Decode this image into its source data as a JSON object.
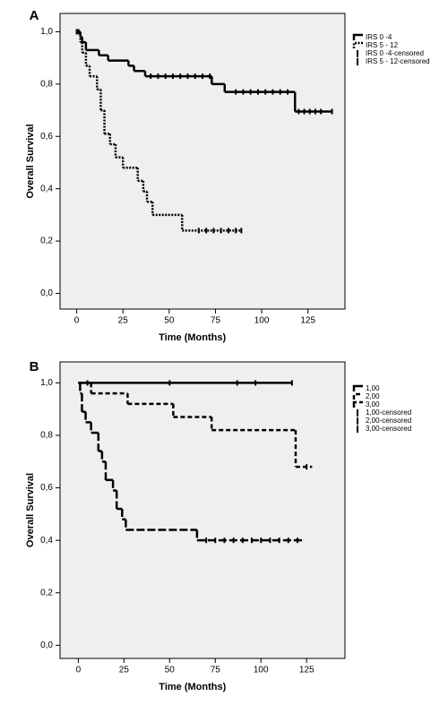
{
  "chart_data": [
    {
      "type": "line",
      "label": "A",
      "x_label": "Time (Months)",
      "y_label": "Overall Survival",
      "xlim": [
        -9,
        145
      ],
      "ylim": [
        -0.06,
        1.07
      ],
      "xticks": [
        0,
        25,
        50,
        75,
        100,
        125
      ],
      "yticks": [
        {
          "value": 0,
          "label": "0,0"
        },
        {
          "value": 0.2,
          "label": "0,2"
        },
        {
          "value": 0.4,
          "label": "0,4"
        },
        {
          "value": 0.6,
          "label": "0,6"
        },
        {
          "value": 0.8,
          "label": "0,8"
        },
        {
          "value": 1.0,
          "label": "1,0"
        }
      ],
      "series": [
        {
          "name": "IRS 0 -4",
          "color": "#000000",
          "style": "solid",
          "x": [
            0,
            2,
            3,
            5,
            12,
            17,
            28,
            31,
            37,
            73,
            80,
            118,
            138
          ],
          "values": [
            1.0,
            0.98,
            0.96,
            0.93,
            0.91,
            0.89,
            0.87,
            0.85,
            0.83,
            0.8,
            0.77,
            0.695,
            0.695
          ]
        },
        {
          "name": "IRS 5 - 12",
          "color": "#000000",
          "style": "dotted",
          "x": [
            0,
            2,
            3,
            5,
            7,
            11,
            13,
            15,
            18,
            21,
            25,
            33,
            36,
            38,
            41,
            57,
            89
          ],
          "values": [
            1.0,
            0.96,
            0.92,
            0.87,
            0.83,
            0.78,
            0.7,
            0.61,
            0.57,
            0.52,
            0.48,
            0.43,
            0.39,
            0.35,
            0.3,
            0.24,
            0.24
          ]
        },
        {
          "name": "IRS 0 -4-censored",
          "color": "#000000",
          "style": "censored",
          "x": [
            0,
            40,
            44,
            48,
            52,
            56,
            60,
            64,
            68,
            72,
            86,
            90,
            94,
            98,
            102,
            106,
            110,
            114,
            120,
            123,
            126,
            129,
            132,
            138
          ],
          "values": [
            1.0,
            0.83,
            0.83,
            0.83,
            0.83,
            0.83,
            0.83,
            0.83,
            0.83,
            0.83,
            0.77,
            0.77,
            0.77,
            0.77,
            0.77,
            0.77,
            0.77,
            0.77,
            0.695,
            0.695,
            0.695,
            0.695,
            0.695,
            0.695
          ]
        },
        {
          "name": "IRS 5 - 12-censored",
          "color": "#000000",
          "style": "censored",
          "x": [
            1,
            66,
            70,
            74,
            78,
            82,
            86,
            89
          ],
          "values": [
            1.0,
            0.24,
            0.24,
            0.24,
            0.24,
            0.24,
            0.24,
            0.24
          ]
        }
      ]
    },
    {
      "type": "line",
      "label": "B",
      "x_label": "Time (Months)",
      "y_label": "Overall Survival",
      "xlim": [
        -10,
        146
      ],
      "ylim": [
        -0.05,
        1.08
      ],
      "xticks": [
        0,
        25,
        50,
        75,
        100,
        125
      ],
      "yticks": [
        {
          "value": 0,
          "label": "0,0"
        },
        {
          "value": 0.2,
          "label": "0,2"
        },
        {
          "value": 0.4,
          "label": "0,4"
        },
        {
          "value": 0.6,
          "label": "0,6"
        },
        {
          "value": 0.8,
          "label": "0,8"
        },
        {
          "value": 1.0,
          "label": "1,0"
        }
      ],
      "series": [
        {
          "name": "1,00",
          "color": "#000000",
          "style": "solid",
          "x": [
            0,
            117
          ],
          "values": [
            1.0,
            1.0
          ]
        },
        {
          "name": "2,00",
          "color": "#000000",
          "style": "dashed",
          "x": [
            0,
            7,
            27,
            52,
            73,
            119,
            128
          ],
          "values": [
            1.0,
            0.96,
            0.92,
            0.87,
            0.82,
            0.68,
            0.68
          ]
        },
        {
          "name": "3,00",
          "color": "#000000",
          "style": "longdash",
          "x": [
            0,
            1,
            2,
            4,
            7,
            11,
            13,
            15,
            19,
            21,
            24,
            26,
            65,
            123
          ],
          "values": [
            1.0,
            0.96,
            0.89,
            0.85,
            0.81,
            0.74,
            0.7,
            0.63,
            0.59,
            0.52,
            0.48,
            0.44,
            0.4,
            0.4
          ]
        },
        {
          "name": "1,00-censored",
          "color": "#000000",
          "style": "censored",
          "x": [
            5,
            50,
            87,
            97,
            117
          ],
          "values": [
            1.0,
            1.0,
            1.0,
            1.0,
            1.0
          ]
        },
        {
          "name": "2,00-censored",
          "color": "#000000",
          "style": "censored",
          "x": [
            125
          ],
          "values": [
            0.68
          ]
        },
        {
          "name": "3,00-censored",
          "color": "#000000",
          "style": "censored",
          "x": [
            70,
            75,
            80,
            85,
            90,
            95,
            100,
            105,
            110,
            115,
            120
          ],
          "values": [
            0.4,
            0.4,
            0.4,
            0.4,
            0.4,
            0.4,
            0.4,
            0.4,
            0.4,
            0.4,
            0.4
          ]
        }
      ]
    }
  ]
}
